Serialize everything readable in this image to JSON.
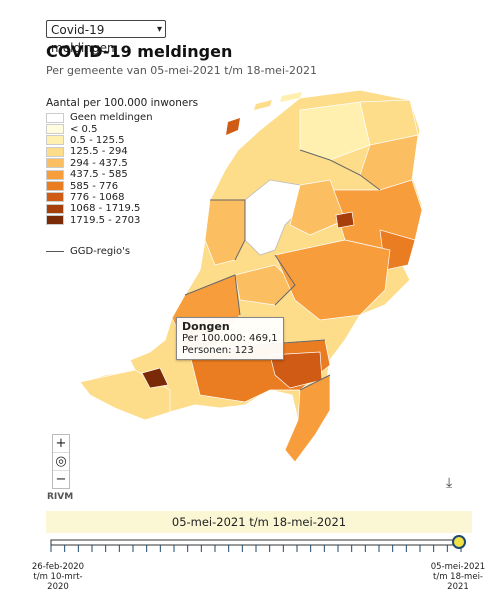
{
  "selector": {
    "value": "Covid-19 meldingen"
  },
  "title": "COVID-19 meldingen",
  "subtitle": "Per gemeente van 05-mei-2021 t/m 18-mei-2021",
  "legend": {
    "title": "Aantal per 100.000 inwoners",
    "items": [
      {
        "label": "Geen meldingen",
        "color": "#ffffff"
      },
      {
        "label": "< 0.5",
        "color": "#fffce0"
      },
      {
        "label": "0.5 - 125.5",
        "color": "#fff0b0"
      },
      {
        "label": "125.5 - 294",
        "color": "#fddc8a"
      },
      {
        "label": "294 - 437.5",
        "color": "#fbbf62"
      },
      {
        "label": "437.5 - 585",
        "color": "#f79d3c"
      },
      {
        "label": "585 - 776",
        "color": "#ea7d22"
      },
      {
        "label": "776 - 1068",
        "color": "#cf5b14"
      },
      {
        "label": "1068 - 1719.5",
        "color": "#a63f0c"
      },
      {
        "label": "1719.5 - 2703",
        "color": "#7a2a06"
      }
    ],
    "region_line_label": "GGD-regio's"
  },
  "tooltip": {
    "name": "Dongen",
    "per_100000": "Per 100.000: 469,1",
    "persons": "Personen: 123"
  },
  "attribution": "RIVM",
  "period": "05-mei-2021 t/m 18-mei-2021",
  "slider": {
    "start_label": "26-feb-2020 t/m 10-mrt-2020",
    "end_label": "05-mei-2021 t/m 18-mei-2021",
    "position": 1.0
  },
  "controls": {
    "zoom_in": "+",
    "locate": "◎",
    "zoom_out": "−",
    "download": "⤓"
  }
}
